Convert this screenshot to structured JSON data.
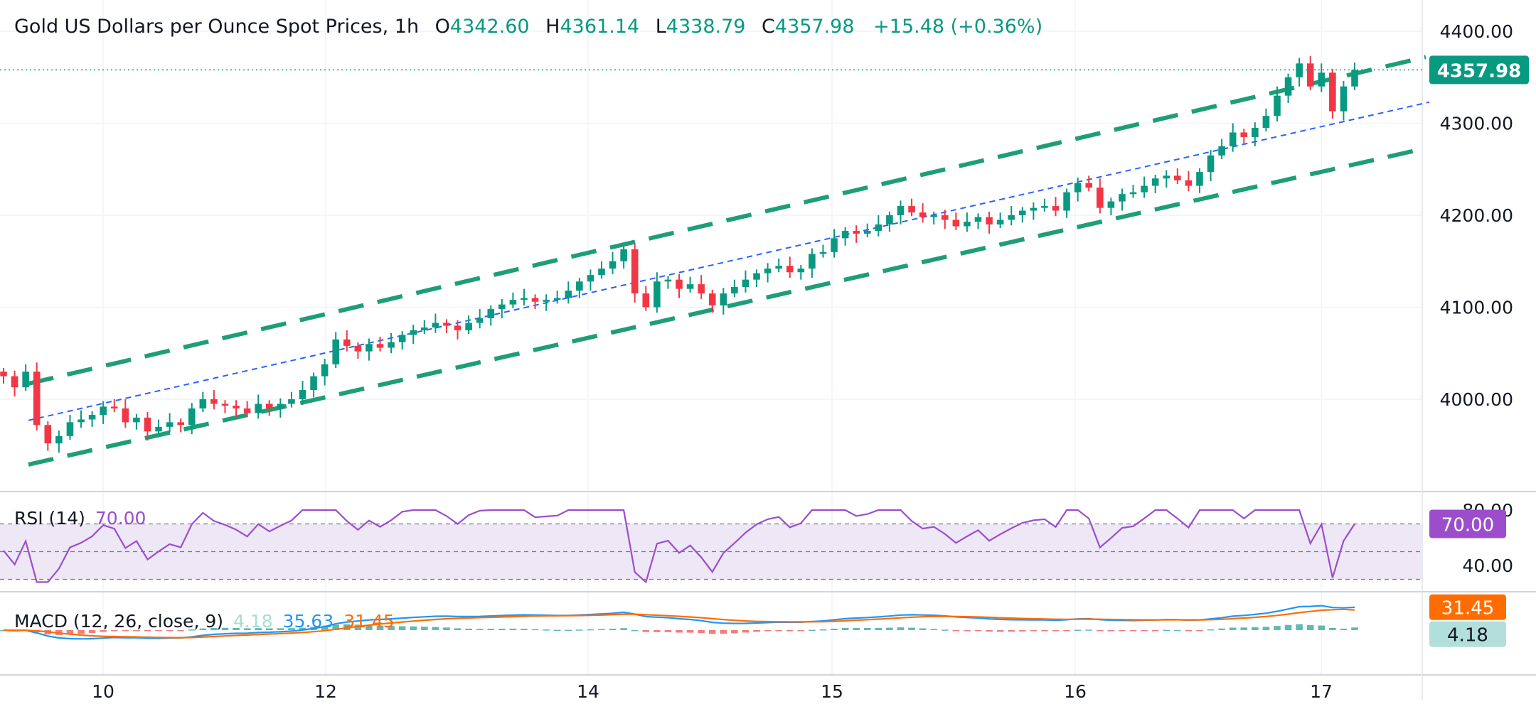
{
  "header": {
    "title": "Gold US Dollars per Ounce Spot Prices, 1h",
    "o_label": "O",
    "o_value": "4342.60",
    "h_label": "H",
    "h_value": "4361.14",
    "l_label": "L",
    "l_value": "4338.79",
    "c_label": "C",
    "c_value": "4357.98",
    "change": "+15.48 (+0.36%)"
  },
  "price_axis": {
    "ticks": [
      "4400.00",
      "4300.00",
      "4200.00",
      "4100.00",
      "4000.00"
    ],
    "last_price_tag": "4357.98"
  },
  "time_axis": {
    "labels": [
      "10",
      "12",
      "14",
      "15",
      "16",
      "17"
    ]
  },
  "rsi": {
    "label": "RSI (14)",
    "value_text": "70.00",
    "tag": "70.00",
    "axis_ticks": [
      "80.00",
      "40.00"
    ]
  },
  "macd": {
    "label": "MACD (12, 26, close, 9)",
    "hist_text": "4.18",
    "macd_text": "35.63",
    "signal_text": "31.45",
    "tag_signal": "31.45",
    "tag_hist": "4.18"
  },
  "colors": {
    "up": "#089981",
    "down": "#f23645",
    "channel": "#1e9e78",
    "midline": "#2962ff",
    "rsi_line": "#9c4dcc",
    "rsi_band": "#ede7f6",
    "macd_line": "#2196f3",
    "signal_line": "#ff6d00",
    "hist_up": "#26a69a",
    "hist_down": "#ef5350"
  },
  "chart_data": {
    "type": "candlestick",
    "title": "Gold US Dollars per Ounce Spot Prices, 1h",
    "y_range": [
      3925,
      4420
    ],
    "closes": [
      4025,
      4013,
      4030,
      3972,
      3952,
      3960,
      3975,
      3978,
      3983,
      3992,
      3990,
      3975,
      3980,
      3965,
      3970,
      3975,
      3972,
      3990,
      4000,
      3995,
      3993,
      3990,
      3985,
      3995,
      3990,
      3995,
      4000,
      4010,
      4025,
      4038,
      4065,
      4058,
      4052,
      4060,
      4056,
      4062,
      4070,
      4075,
      4078,
      4083,
      4080,
      4075,
      4083,
      4088,
      4098,
      4103,
      4108,
      4110,
      4106,
      4108,
      4110,
      4118,
      4128,
      4135,
      4142,
      4150,
      4163,
      4115,
      4100,
      4128,
      4130,
      4120,
      4125,
      4115,
      4102,
      4115,
      4122,
      4130,
      4137,
      4142,
      4145,
      4138,
      4142,
      4158,
      4160,
      4175,
      4183,
      4180,
      4183,
      4190,
      4200,
      4210,
      4203,
      4198,
      4200,
      4195,
      4188,
      4193,
      4198,
      4190,
      4195,
      4200,
      4205,
      4208,
      4210,
      4205,
      4225,
      4235,
      4230,
      4208,
      4215,
      4223,
      4225,
      4232,
      4240,
      4243,
      4238,
      4232,
      4247,
      4265,
      4275,
      4290,
      4285,
      4295,
      4308,
      4330,
      4350,
      4365,
      4340,
      4355,
      4313,
      4340,
      4357.98
    ]
  }
}
